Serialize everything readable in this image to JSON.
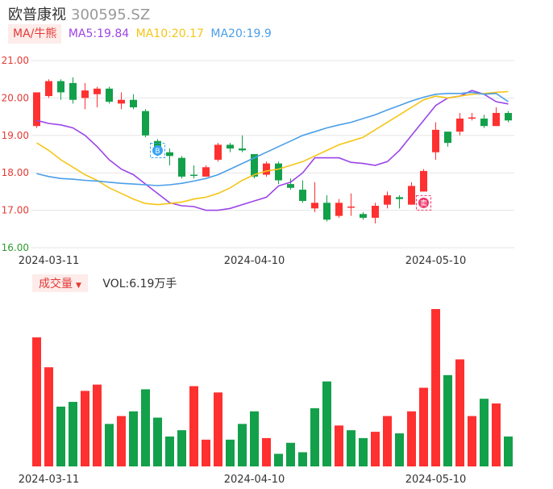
{
  "header": {
    "name": "欧普康视",
    "code": "300595.SZ"
  },
  "ma_bar": {
    "toggle_label": "MA/牛熊",
    "ma5": {
      "label": "MA5:19.84",
      "color": "#9c44e8"
    },
    "ma10": {
      "label": "MA10:20.17",
      "color": "#f5c518"
    },
    "ma20": {
      "label": "MA20:19.9",
      "color": "#4a9ee8"
    }
  },
  "volume_bar": {
    "toggle_label": "成交量",
    "vol_label": "VOL:6.19万手"
  },
  "colors": {
    "up": "#ff3030",
    "down": "#13a04a",
    "grid": "#e6e6e6",
    "buy_marker": "#3aa3f5",
    "sell_marker": "#f0376b"
  },
  "icons": {
    "buy_marker": "buy-signal-icon",
    "sell_marker": "sell-signal-icon"
  },
  "chart_data": [
    {
      "type": "candlestick",
      "ylim": [
        16.0,
        21.0
      ],
      "y_ticks": [
        "21.00",
        "20.00",
        "19.00",
        "18.00",
        "17.00",
        "16.00"
      ],
      "x_ticks": [
        "2024-03-11",
        "2024-04-10",
        "2024-05-10"
      ],
      "x_tick_index": [
        1,
        18,
        33
      ],
      "grid": true,
      "candles": [
        {
          "o": 19.25,
          "c": 20.15,
          "h": 20.15,
          "l": 19.2
        },
        {
          "o": 20.05,
          "c": 20.45,
          "h": 20.5,
          "l": 20.0
        },
        {
          "o": 20.45,
          "c": 20.15,
          "h": 20.5,
          "l": 19.95
        },
        {
          "o": 20.4,
          "c": 19.95,
          "h": 20.55,
          "l": 19.85
        },
        {
          "o": 20.0,
          "c": 20.2,
          "h": 20.4,
          "l": 19.7
        },
        {
          "o": 20.1,
          "c": 20.25,
          "h": 20.3,
          "l": 19.75
        },
        {
          "o": 20.25,
          "c": 19.9,
          "h": 20.3,
          "l": 19.85
        },
        {
          "o": 19.85,
          "c": 19.95,
          "h": 20.15,
          "l": 19.7
        },
        {
          "o": 19.95,
          "c": 19.75,
          "h": 20.1,
          "l": 19.7
        },
        {
          "o": 19.65,
          "c": 19.0,
          "h": 19.7,
          "l": 18.95
        },
        {
          "o": 18.85,
          "c": 18.5,
          "h": 18.9,
          "l": 18.45
        },
        {
          "o": 18.55,
          "c": 18.45,
          "h": 18.65,
          "l": 18.2
        },
        {
          "o": 18.4,
          "c": 17.9,
          "h": 18.45,
          "l": 17.85
        },
        {
          "o": 17.95,
          "c": 17.92,
          "h": 18.2,
          "l": 17.85
        },
        {
          "o": 17.9,
          "c": 18.15,
          "h": 18.2,
          "l": 17.9
        },
        {
          "o": 18.35,
          "c": 18.75,
          "h": 18.8,
          "l": 18.3
        },
        {
          "o": 18.75,
          "c": 18.65,
          "h": 18.8,
          "l": 18.55
        },
        {
          "o": 18.65,
          "c": 18.6,
          "h": 19.0,
          "l": 18.55
        },
        {
          "o": 18.5,
          "c": 17.9,
          "h": 18.5,
          "l": 17.85
        },
        {
          "o": 17.95,
          "c": 18.25,
          "h": 18.3,
          "l": 17.9
        },
        {
          "o": 18.25,
          "c": 17.8,
          "h": 18.3,
          "l": 17.7
        },
        {
          "o": 17.7,
          "c": 17.6,
          "h": 17.85,
          "l": 17.55
        },
        {
          "o": 17.55,
          "c": 17.25,
          "h": 17.8,
          "l": 17.2
        },
        {
          "o": 17.05,
          "c": 17.2,
          "h": 17.75,
          "l": 16.95
        },
        {
          "o": 17.2,
          "c": 16.75,
          "h": 17.4,
          "l": 16.7
        },
        {
          "o": 16.85,
          "c": 17.2,
          "h": 17.3,
          "l": 16.8
        },
        {
          "o": 17.1,
          "c": 17.1,
          "h": 17.45,
          "l": 16.85
        },
        {
          "o": 16.9,
          "c": 16.8,
          "h": 16.95,
          "l": 16.75
        },
        {
          "o": 16.8,
          "c": 17.12,
          "h": 17.2,
          "l": 16.65
        },
        {
          "o": 17.15,
          "c": 17.4,
          "h": 17.5,
          "l": 17.05
        },
        {
          "o": 17.35,
          "c": 17.3,
          "h": 17.4,
          "l": 17.05
        },
        {
          "o": 17.15,
          "c": 17.65,
          "h": 17.75,
          "l": 17.15
        },
        {
          "o": 17.5,
          "c": 18.05,
          "h": 18.1,
          "l": 17.5
        },
        {
          "o": 18.55,
          "c": 19.15,
          "h": 19.35,
          "l": 18.35
        },
        {
          "o": 19.1,
          "c": 18.8,
          "h": 19.1,
          "l": 18.7
        },
        {
          "o": 19.1,
          "c": 19.45,
          "h": 19.6,
          "l": 19.0
        },
        {
          "o": 19.45,
          "c": 19.48,
          "h": 19.6,
          "l": 19.4
        },
        {
          "o": 19.45,
          "c": 19.25,
          "h": 19.55,
          "l": 19.2
        },
        {
          "o": 19.25,
          "c": 19.6,
          "h": 19.75,
          "l": 19.25
        },
        {
          "o": 19.6,
          "c": 19.4,
          "h": 19.65,
          "l": 19.35
        }
      ],
      "series": [
        {
          "name": "MA5",
          "color": "#9c44e8",
          "values": [
            19.4,
            19.32,
            19.28,
            19.2,
            19.0,
            18.7,
            18.35,
            18.1,
            17.95,
            17.7,
            17.45,
            17.2,
            17.12,
            17.1,
            17.0,
            17.0,
            17.05,
            17.15,
            17.25,
            17.35,
            17.65,
            17.75,
            18.0,
            18.4,
            18.4,
            18.4,
            18.28,
            18.25,
            18.2,
            18.3,
            18.6,
            19.0,
            19.4,
            19.8,
            20.0,
            20.05,
            20.2,
            20.1,
            19.9,
            19.84
          ]
        },
        {
          "name": "MA10",
          "color": "#f5c518",
          "values": [
            18.8,
            18.6,
            18.35,
            18.15,
            17.95,
            17.8,
            17.6,
            17.45,
            17.3,
            17.18,
            17.15,
            17.18,
            17.22,
            17.3,
            17.35,
            17.45,
            17.6,
            17.8,
            17.95,
            18.05,
            18.1,
            18.2,
            18.3,
            18.45,
            18.6,
            18.75,
            18.85,
            18.95,
            19.15,
            19.35,
            19.55,
            19.75,
            19.95,
            20.05,
            20.0,
            20.05,
            20.1,
            20.12,
            20.15,
            20.17
          ]
        },
        {
          "name": "MA20",
          "color": "#4a9ee8",
          "values": [
            17.98,
            17.9,
            17.85,
            17.83,
            17.8,
            17.78,
            17.75,
            17.72,
            17.7,
            17.68,
            17.66,
            17.68,
            17.72,
            17.78,
            17.85,
            17.95,
            18.1,
            18.25,
            18.4,
            18.55,
            18.7,
            18.85,
            19.0,
            19.1,
            19.2,
            19.28,
            19.35,
            19.45,
            19.55,
            19.68,
            19.8,
            19.92,
            20.02,
            20.1,
            20.12,
            20.12,
            20.15,
            20.1,
            20.12,
            19.9
          ]
        }
      ],
      "markers": [
        {
          "index": 10,
          "text": "B",
          "kind": "buy"
        },
        {
          "index": 32,
          "text": "卖",
          "kind": "sell"
        }
      ]
    },
    {
      "type": "bar",
      "name": "volume",
      "x_ticks": [
        "2024-03-11",
        "2024-04-10",
        "2024-05-10"
      ],
      "x_tick_index": [
        1,
        18,
        33
      ],
      "ylim": [
        0,
        100
      ],
      "values": [
        82,
        63,
        38,
        41,
        48,
        52,
        27,
        32,
        35,
        49,
        31,
        19,
        23,
        51,
        17,
        47,
        17,
        27,
        35,
        18,
        8,
        15,
        9,
        37,
        54,
        26,
        23,
        18,
        22,
        32,
        21,
        35,
        50,
        100,
        58,
        68,
        32,
        43,
        40,
        19
      ],
      "directions": [
        "up",
        "up",
        "down",
        "down",
        "up",
        "up",
        "down",
        "up",
        "down",
        "down",
        "down",
        "down",
        "down",
        "up",
        "up",
        "up",
        "down",
        "down",
        "down",
        "up",
        "down",
        "down",
        "down",
        "down",
        "down",
        "up",
        "down",
        "down",
        "up",
        "up",
        "down",
        "up",
        "up",
        "up",
        "down",
        "up",
        "up",
        "down",
        "up",
        "down"
      ]
    }
  ]
}
